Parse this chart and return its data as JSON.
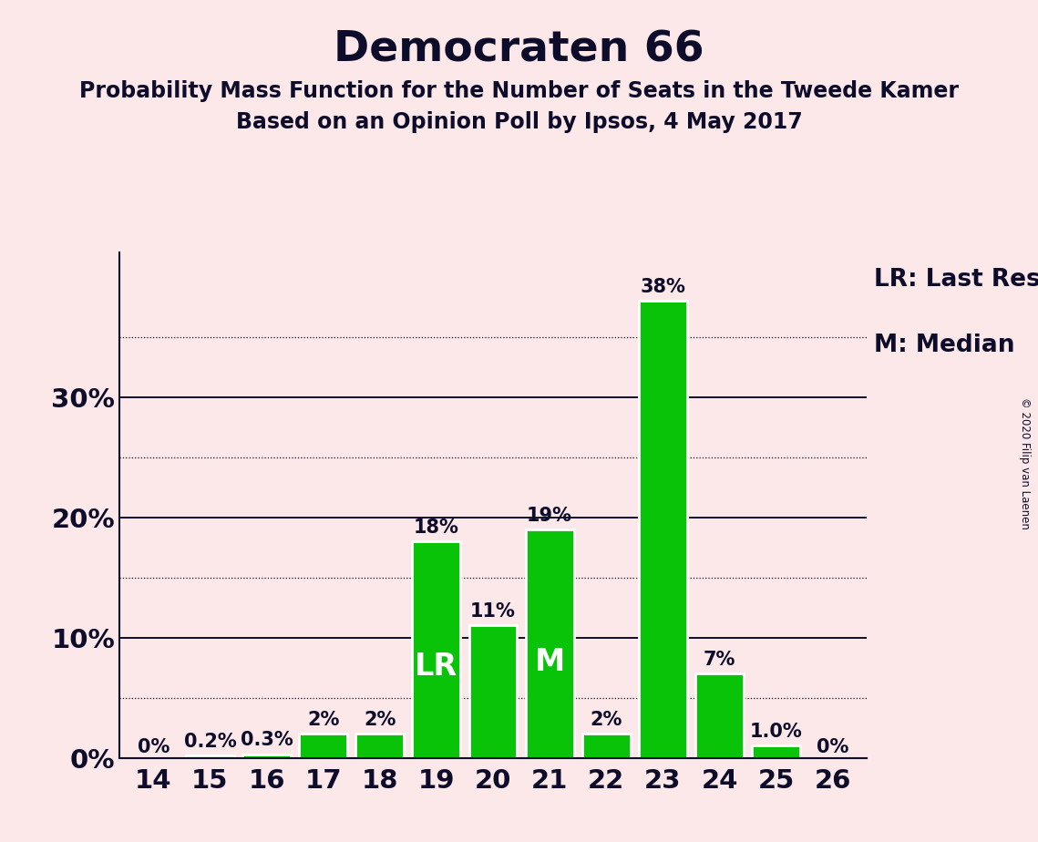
{
  "title": "Democraten 66",
  "subtitle1": "Probability Mass Function for the Number of Seats in the Tweede Kamer",
  "subtitle2": "Based on an Opinion Poll by Ipsos, 4 May 2017",
  "copyright": "© 2020 Filip van Laenen",
  "categories": [
    14,
    15,
    16,
    17,
    18,
    19,
    20,
    21,
    22,
    23,
    24,
    25,
    26
  ],
  "values": [
    0.0,
    0.2,
    0.3,
    2.0,
    2.0,
    18.0,
    11.0,
    19.0,
    2.0,
    38.0,
    7.0,
    1.0,
    0.0
  ],
  "bar_labels": [
    "0%",
    "0.2%",
    "0.3%",
    "2%",
    "2%",
    "18%",
    "11%",
    "19%",
    "2%",
    "38%",
    "7%",
    "1.0%",
    "0%"
  ],
  "bar_color": "#09c309",
  "background_color": "#fce8e8",
  "text_color": "#0d0d2b",
  "lr_seat": 19,
  "median_seat": 21,
  "lr_label": "LR",
  "median_label": "M",
  "legend_lr": "LR: Last Result",
  "legend_m": "M: Median",
  "ytick_labeled": [
    0,
    10,
    20,
    30
  ],
  "ytick_labeled_labels": [
    "0%",
    "10%",
    "20%",
    "30%"
  ],
  "solid_yticks": [
    10,
    20,
    30
  ],
  "dotted_yticks": [
    5,
    15,
    25,
    35
  ],
  "ylim": [
    0,
    42
  ],
  "title_fontsize": 34,
  "subtitle_fontsize": 17,
  "axis_tick_fontsize": 21,
  "bar_label_fontsize": 15,
  "legend_fontsize": 19,
  "inner_label_fontsize": 24
}
